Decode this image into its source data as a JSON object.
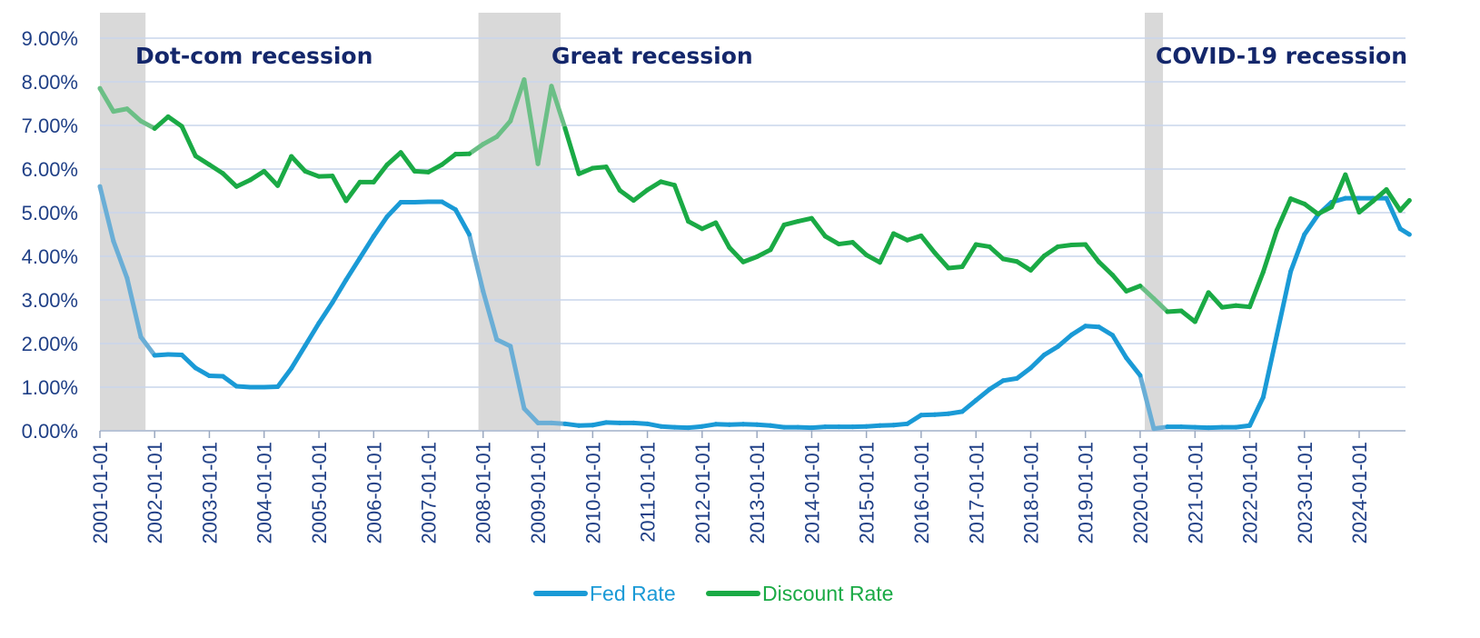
{
  "chart_data": {
    "type": "line",
    "title": "",
    "xlabel": "",
    "ylabel": "",
    "ylim": [
      0,
      9
    ],
    "y_ticks": [
      "0.00%",
      "1.00%",
      "2.00%",
      "3.00%",
      "4.00%",
      "5.00%",
      "6.00%",
      "7.00%",
      "8.00%",
      "9.00%"
    ],
    "x_ticks": [
      "2001-01-01",
      "2002-01-01",
      "2003-01-01",
      "2004-01-01",
      "2005-01-01",
      "2006-01-01",
      "2007-01-01",
      "2008-01-01",
      "2009-01-01",
      "2010-01-01",
      "2011-01-01",
      "2012-01-01",
      "2013-01-01",
      "2014-01-01",
      "2015-01-01",
      "2016-01-01",
      "2017-01-01",
      "2018-01-01",
      "2019-01-01",
      "2020-01-01",
      "2021-01-01",
      "2022-01-01",
      "2023-01-01",
      "2024-01-01"
    ],
    "x_range": [
      "2001-01-01",
      "2024-12-01"
    ],
    "grid": "horizontal",
    "legend_position": "bottom-center",
    "recessions": [
      {
        "label": "Dot-com recession",
        "start": "2001-01-01",
        "end": "2001-11-01"
      },
      {
        "label": "Great recession",
        "start": "2007-12-01",
        "end": "2009-06-01"
      },
      {
        "label": "COVID-19 recession",
        "start": "2020-02-01",
        "end": "2020-04-01"
      }
    ],
    "series": [
      {
        "name": "Fed Rate",
        "color": "#1a9ad6",
        "recession_color": "#6aaed6",
        "points": [
          [
            "2001-01-01",
            5.6
          ],
          [
            "2001-04-01",
            4.35
          ],
          [
            "2001-07-01",
            3.5
          ],
          [
            "2001-10-01",
            2.15
          ],
          [
            "2002-01-01",
            1.73
          ],
          [
            "2002-04-01",
            1.75
          ],
          [
            "2002-07-01",
            1.74
          ],
          [
            "2002-10-01",
            1.44
          ],
          [
            "2003-01-01",
            1.26
          ],
          [
            "2003-04-01",
            1.25
          ],
          [
            "2003-07-01",
            1.02
          ],
          [
            "2003-10-01",
            1.0
          ],
          [
            "2004-01-01",
            1.0
          ],
          [
            "2004-04-01",
            1.01
          ],
          [
            "2004-07-01",
            1.43
          ],
          [
            "2004-10-01",
            1.95
          ],
          [
            "2005-01-01",
            2.47
          ],
          [
            "2005-04-01",
            2.94
          ],
          [
            "2005-07-01",
            3.46
          ],
          [
            "2005-10-01",
            3.96
          ],
          [
            "2006-01-01",
            4.46
          ],
          [
            "2006-04-01",
            4.91
          ],
          [
            "2006-07-01",
            5.24
          ],
          [
            "2006-10-01",
            5.24
          ],
          [
            "2007-01-01",
            5.25
          ],
          [
            "2007-04-01",
            5.25
          ],
          [
            "2007-07-01",
            5.07
          ],
          [
            "2007-10-01",
            4.5
          ],
          [
            "2008-01-01",
            3.2
          ],
          [
            "2008-04-01",
            2.09
          ],
          [
            "2008-07-01",
            1.94
          ],
          [
            "2008-10-01",
            0.51
          ],
          [
            "2009-01-01",
            0.18
          ],
          [
            "2009-04-01",
            0.18
          ],
          [
            "2009-07-01",
            0.16
          ],
          [
            "2009-10-01",
            0.12
          ],
          [
            "2010-01-01",
            0.13
          ],
          [
            "2010-04-01",
            0.19
          ],
          [
            "2010-07-01",
            0.18
          ],
          [
            "2010-10-01",
            0.18
          ],
          [
            "2011-01-01",
            0.16
          ],
          [
            "2011-04-01",
            0.1
          ],
          [
            "2011-07-01",
            0.08
          ],
          [
            "2011-10-01",
            0.07
          ],
          [
            "2012-01-01",
            0.1
          ],
          [
            "2012-04-01",
            0.15
          ],
          [
            "2012-07-01",
            0.14
          ],
          [
            "2012-10-01",
            0.15
          ],
          [
            "2013-01-01",
            0.14
          ],
          [
            "2013-04-01",
            0.12
          ],
          [
            "2013-07-01",
            0.08
          ],
          [
            "2013-10-01",
            0.08
          ],
          [
            "2014-01-01",
            0.07
          ],
          [
            "2014-04-01",
            0.09
          ],
          [
            "2014-07-01",
            0.09
          ],
          [
            "2014-10-01",
            0.09
          ],
          [
            "2015-01-01",
            0.1
          ],
          [
            "2015-04-01",
            0.12
          ],
          [
            "2015-07-01",
            0.13
          ],
          [
            "2015-10-01",
            0.16
          ],
          [
            "2016-01-01",
            0.36
          ],
          [
            "2016-04-01",
            0.37
          ],
          [
            "2016-07-01",
            0.39
          ],
          [
            "2016-10-01",
            0.44
          ],
          [
            "2017-01-01",
            0.7
          ],
          [
            "2017-04-01",
            0.95
          ],
          [
            "2017-07-01",
            1.15
          ],
          [
            "2017-10-01",
            1.2
          ],
          [
            "2018-01-01",
            1.44
          ],
          [
            "2018-04-01",
            1.74
          ],
          [
            "2018-07-01",
            1.93
          ],
          [
            "2018-10-01",
            2.2
          ],
          [
            "2019-01-01",
            2.4
          ],
          [
            "2019-04-01",
            2.38
          ],
          [
            "2019-07-01",
            2.19
          ],
          [
            "2019-10-01",
            1.67
          ],
          [
            "2020-01-01",
            1.27
          ],
          [
            "2020-04-01",
            0.05
          ],
          [
            "2020-07-01",
            0.09
          ],
          [
            "2020-10-01",
            0.09
          ],
          [
            "2021-01-01",
            0.08
          ],
          [
            "2021-04-01",
            0.07
          ],
          [
            "2021-07-01",
            0.08
          ],
          [
            "2021-10-01",
            0.08
          ],
          [
            "2022-01-01",
            0.12
          ],
          [
            "2022-04-01",
            0.77
          ],
          [
            "2022-07-01",
            2.2
          ],
          [
            "2022-10-01",
            3.65
          ],
          [
            "2023-01-01",
            4.5
          ],
          [
            "2023-04-01",
            4.95
          ],
          [
            "2023-07-01",
            5.24
          ],
          [
            "2023-10-01",
            5.33
          ],
          [
            "2024-01-01",
            5.33
          ],
          [
            "2024-04-01",
            5.33
          ],
          [
            "2024-07-01",
            5.33
          ],
          [
            "2024-10-01",
            4.63
          ],
          [
            "2024-12-01",
            4.5
          ]
        ]
      },
      {
        "name": "Discount Rate",
        "color": "#1aaa45",
        "recession_color": "#6bbf86",
        "points": [
          [
            "2001-01-01",
            7.85
          ],
          [
            "2001-04-01",
            7.32
          ],
          [
            "2001-07-01",
            7.38
          ],
          [
            "2001-10-01",
            7.1
          ],
          [
            "2002-01-01",
            6.93
          ],
          [
            "2002-04-01",
            7.2
          ],
          [
            "2002-07-01",
            6.98
          ],
          [
            "2002-10-01",
            6.3
          ],
          [
            "2003-01-01",
            6.1
          ],
          [
            "2003-04-01",
            5.9
          ],
          [
            "2003-07-01",
            5.6
          ],
          [
            "2003-10-01",
            5.75
          ],
          [
            "2004-01-01",
            5.95
          ],
          [
            "2004-04-01",
            5.62
          ],
          [
            "2004-07-01",
            6.29
          ],
          [
            "2004-10-01",
            5.95
          ],
          [
            "2005-01-01",
            5.83
          ],
          [
            "2005-04-01",
            5.84
          ],
          [
            "2005-07-01",
            5.27
          ],
          [
            "2005-10-01",
            5.7
          ],
          [
            "2006-01-01",
            5.7
          ],
          [
            "2006-04-01",
            6.1
          ],
          [
            "2006-07-01",
            6.38
          ],
          [
            "2006-10-01",
            5.95
          ],
          [
            "2007-01-01",
            5.93
          ],
          [
            "2007-04-01",
            6.1
          ],
          [
            "2007-07-01",
            6.34
          ],
          [
            "2007-10-01",
            6.35
          ],
          [
            "2008-01-01",
            6.57
          ],
          [
            "2008-04-01",
            6.74
          ],
          [
            "2008-07-01",
            7.1
          ],
          [
            "2008-10-01",
            8.05
          ],
          [
            "2009-01-01",
            6.12
          ],
          [
            "2009-04-01",
            7.9
          ],
          [
            "2009-07-01",
            6.93
          ],
          [
            "2009-10-01",
            5.89
          ],
          [
            "2010-01-01",
            6.02
          ],
          [
            "2010-04-01",
            6.05
          ],
          [
            "2010-07-01",
            5.51
          ],
          [
            "2010-10-01",
            5.28
          ],
          [
            "2011-01-01",
            5.52
          ],
          [
            "2011-04-01",
            5.71
          ],
          [
            "2011-07-01",
            5.63
          ],
          [
            "2011-10-01",
            4.8
          ],
          [
            "2012-01-01",
            4.63
          ],
          [
            "2012-04-01",
            4.77
          ],
          [
            "2012-07-01",
            4.2
          ],
          [
            "2012-10-01",
            3.87
          ],
          [
            "2013-01-01",
            3.99
          ],
          [
            "2013-04-01",
            4.15
          ],
          [
            "2013-07-01",
            4.72
          ],
          [
            "2013-10-01",
            4.8
          ],
          [
            "2014-01-01",
            4.87
          ],
          [
            "2014-04-01",
            4.46
          ],
          [
            "2014-07-01",
            4.28
          ],
          [
            "2014-10-01",
            4.32
          ],
          [
            "2015-01-01",
            4.03
          ],
          [
            "2015-04-01",
            3.86
          ],
          [
            "2015-07-01",
            4.52
          ],
          [
            "2015-10-01",
            4.37
          ],
          [
            "2016-01-01",
            4.47
          ],
          [
            "2016-04-01",
            4.08
          ],
          [
            "2016-07-01",
            3.73
          ],
          [
            "2016-10-01",
            3.76
          ],
          [
            "2017-01-01",
            4.27
          ],
          [
            "2017-04-01",
            4.22
          ],
          [
            "2017-07-01",
            3.94
          ],
          [
            "2017-10-01",
            3.88
          ],
          [
            "2018-01-01",
            3.68
          ],
          [
            "2018-04-01",
            4.01
          ],
          [
            "2018-07-01",
            4.22
          ],
          [
            "2018-10-01",
            4.26
          ],
          [
            "2019-01-01",
            4.27
          ],
          [
            "2019-04-01",
            3.87
          ],
          [
            "2019-07-01",
            3.57
          ],
          [
            "2019-10-01",
            3.2
          ],
          [
            "2020-01-01",
            3.32
          ],
          [
            "2020-04-01",
            3.03
          ],
          [
            "2020-07-01",
            2.73
          ],
          [
            "2020-10-01",
            2.75
          ],
          [
            "2021-01-01",
            2.5
          ],
          [
            "2021-04-01",
            3.17
          ],
          [
            "2021-07-01",
            2.83
          ],
          [
            "2021-10-01",
            2.87
          ],
          [
            "2022-01-01",
            2.84
          ],
          [
            "2022-04-01",
            3.64
          ],
          [
            "2022-07-01",
            4.6
          ],
          [
            "2022-10-01",
            5.32
          ],
          [
            "2023-01-01",
            5.2
          ],
          [
            "2023-04-01",
            4.97
          ],
          [
            "2023-07-01",
            5.13
          ],
          [
            "2023-10-01",
            5.87
          ],
          [
            "2024-01-01",
            5.01
          ],
          [
            "2024-04-01",
            5.26
          ],
          [
            "2024-07-01",
            5.53
          ],
          [
            "2024-10-01",
            5.05
          ],
          [
            "2024-12-01",
            5.28
          ]
        ]
      }
    ]
  }
}
